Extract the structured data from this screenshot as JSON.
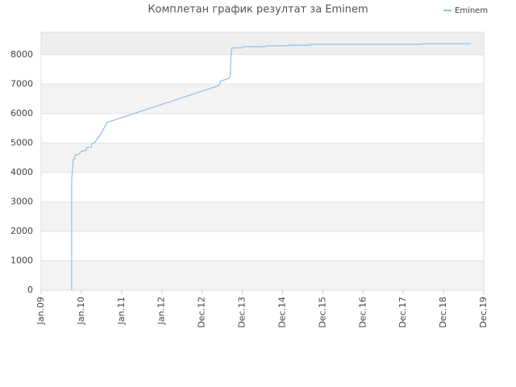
{
  "chart_data": {
    "type": "line",
    "title": "Комплетан график резултат за Eminem",
    "x": [
      0.76,
      0.76,
      0.78,
      0.8,
      0.84,
      0.84,
      0.92,
      0.96,
      1.0,
      1.12,
      1.14,
      1.24,
      1.26,
      1.32,
      1.48,
      1.64,
      4.42,
      4.46,
      4.68,
      4.7,
      4.72,
      4.74,
      4.98,
      5.02,
      5.56,
      5.58,
      6.12,
      6.14,
      6.68,
      6.7,
      9.46,
      9.48,
      10.68
    ],
    "series": [
      {
        "name": "Eminem",
        "color": "#8fc0ee",
        "values": [
          0,
          3750,
          4100,
          4450,
          4450,
          4600,
          4600,
          4650,
          4720,
          4750,
          4850,
          4850,
          4980,
          5000,
          5300,
          5700,
          6950,
          7100,
          7200,
          7300,
          8000,
          8230,
          8230,
          8270,
          8270,
          8300,
          8300,
          8320,
          8320,
          8350,
          8350,
          8370,
          8370
        ]
      }
    ],
    "xlim": [
      0,
      11
    ],
    "xticks": [
      {
        "value": 0,
        "label": "Jan.09"
      },
      {
        "value": 1,
        "label": "Jan.10"
      },
      {
        "value": 2,
        "label": "Jan.11"
      },
      {
        "value": 3,
        "label": "Jan.12"
      },
      {
        "value": 4,
        "label": "Dec.12"
      },
      {
        "value": 5,
        "label": "Dec.13"
      },
      {
        "value": 6,
        "label": "Dec.14"
      },
      {
        "value": 7,
        "label": "Dec.15"
      },
      {
        "value": 8,
        "label": "Dec.16"
      },
      {
        "value": 9,
        "label": "Dec.17"
      },
      {
        "value": 10,
        "label": "Dec.18"
      },
      {
        "value": 11,
        "label": "Dec.19"
      }
    ],
    "ylim": [
      0,
      8760
    ],
    "yticks": [
      0,
      1000,
      2000,
      3000,
      4000,
      5000,
      6000,
      7000,
      8000
    ],
    "grid": true,
    "legend": "top-right"
  }
}
